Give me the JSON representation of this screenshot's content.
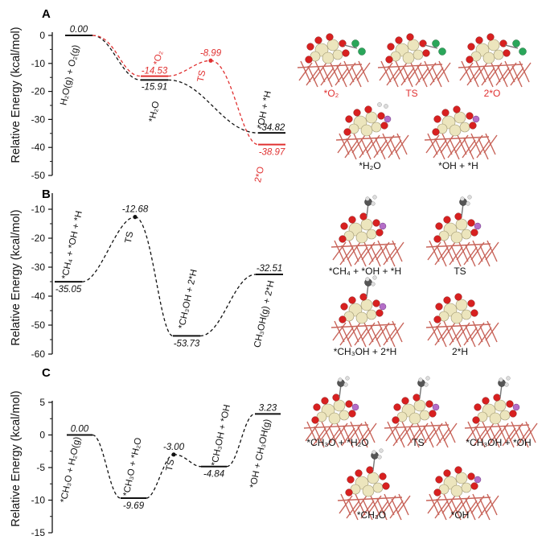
{
  "colors": {
    "main": "#111111",
    "red": "#e03030",
    "bond": "#c8645a",
    "atomPt": "#ece5bd",
    "atomO": "#d82020",
    "atomH": "#dddddd",
    "atomHpink": "#b46ec8",
    "atomC": "#555555",
    "atomOgreen": "#2aa65a"
  },
  "panels": [
    {
      "label": "A",
      "ylabel": "Relative Energy (kcal/mol)"
    },
    {
      "label": "B",
      "ylabel": "Relative Energy (kcal/mol)"
    },
    {
      "label": "C",
      "ylabel": "Relative Energy (kcal/mol)"
    }
  ],
  "chart_data": [
    {
      "type": "line",
      "panel": "A",
      "ylabel": "Relative Energy (kcal/mol)",
      "ylim": [
        -50,
        0
      ],
      "yticks": [
        "0",
        "-10",
        "-20",
        "-30",
        "-40",
        "-50"
      ],
      "series": [
        {
          "color": "black",
          "levels": [
            {
              "x": 0,
              "value": 0.0,
              "value_label": "0.00",
              "label": "H₂O(g) + O₂(g)"
            },
            {
              "x": 1,
              "value": -15.91,
              "value_label": "-15.91",
              "label": "*H₂O"
            },
            {
              "x": 3,
              "value": -34.82,
              "value_label": "-34.82",
              "label": "*OH + *H"
            }
          ]
        },
        {
          "color": "red",
          "levels": [
            {
              "x": 1,
              "value": -14.53,
              "value_label": "-14.53",
              "label": "*O₂"
            },
            {
              "x": 2,
              "value": -8.99,
              "value_label": "-8.99",
              "label": "TS"
            },
            {
              "x": 3,
              "value": -38.97,
              "value_label": "-38.97",
              "label": "2*O"
            }
          ]
        }
      ]
    },
    {
      "type": "line",
      "panel": "B",
      "ylabel": "Relative Energy (kcal/mol)",
      "ylim": [
        -60,
        -5
      ],
      "yticks": [
        "-10",
        "-20",
        "-30",
        "-40",
        "-50",
        "-60"
      ],
      "series": [
        {
          "color": "black",
          "levels": [
            {
              "x": 0,
              "value": -35.05,
              "value_label": "-35.05",
              "label": "*CH₄ + *OH + *H"
            },
            {
              "x": 1,
              "value": -12.68,
              "value_label": "-12.68",
              "label": "TS"
            },
            {
              "x": 2,
              "value": -53.73,
              "value_label": "-53.73",
              "label": "*CH₃OH + 2*H"
            },
            {
              "x": 3,
              "value": -32.51,
              "value_label": "-32.51",
              "label": "CH₃OH(g) + 2*H"
            }
          ]
        }
      ]
    },
    {
      "type": "line",
      "panel": "C",
      "ylabel": "Relative Energy (kcal/mol)",
      "ylim": [
        -15,
        5
      ],
      "yticks": [
        "5",
        "0",
        "-5",
        "-10",
        "-15"
      ],
      "series": [
        {
          "color": "black",
          "levels": [
            {
              "x": 0,
              "value": 0.0,
              "value_label": "0.00",
              "label": "*CH₃O + H₂O(g)"
            },
            {
              "x": 1,
              "value": -9.69,
              "value_label": "-9.69",
              "label": "*CH₃O + *H₂O"
            },
            {
              "x": 2,
              "value": -3.0,
              "value_label": "-3.00",
              "label": "TS"
            },
            {
              "x": 3,
              "value": -4.84,
              "value_label": "-4.84",
              "label": "*CH₃OH + *OH"
            },
            {
              "x": 4,
              "value": 3.23,
              "value_label": "3.23",
              "label": "*OH + CH₃OH(g)"
            }
          ]
        }
      ]
    }
  ],
  "structure_captions": {
    "A": [
      "*O₂",
      "TS",
      "2*O",
      "*H₂O",
      "*OH + *H"
    ],
    "B": [
      "*CH₄ + *OH + *H",
      "TS",
      "*CH₃OH + 2*H",
      "2*H"
    ],
    "C": [
      "*CH₃O + *H₂O",
      "TS",
      "*CH₃OH + *OH",
      "*CH₃O",
      "*OH"
    ]
  }
}
